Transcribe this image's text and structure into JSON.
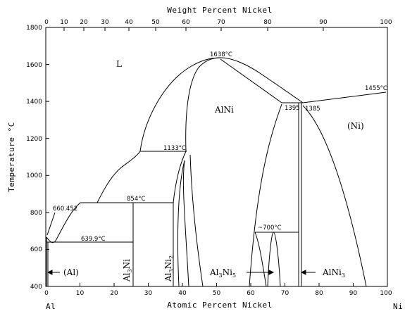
{
  "top_axis": {
    "title": "Weight Percent Nickel",
    "ticks": [
      "0",
      "10",
      "20",
      "30",
      "40",
      "50",
      "60",
      "70",
      "80",
      "90",
      "100"
    ]
  },
  "bottom_axis": {
    "title": "Atomic Percent Nickel",
    "ticks": [
      "0",
      "10",
      "20",
      "30",
      "40",
      "50",
      "60",
      "70",
      "80",
      "90",
      "100"
    ],
    "left_element": "Al",
    "right_element": "Ni"
  },
  "left_axis": {
    "title": "Temperature °C",
    "ticks": [
      "400",
      "600",
      "800",
      "1000",
      "1200",
      "1400",
      "1600",
      "1800"
    ]
  },
  "phases": {
    "liquid": "L",
    "alni": "AlNi",
    "ni": "(Ni)",
    "al": "(Al)",
    "al3ni": "Al3Ni",
    "al3ni2": "Al3Ni2",
    "al3ni5": "Al3Ni5",
    "alni3": "AlNi3"
  },
  "temperatures": {
    "t1638": "1638°C",
    "t1455": "1455°C",
    "t1395": "1395",
    "t1385": "1385",
    "t1133": "1133°C",
    "t854": "854°C",
    "t660": "660.452",
    "t639": "639.9°C",
    "t700": "~700°C"
  },
  "chart_data": {
    "type": "phase-diagram",
    "system": "Al-Ni",
    "x_axis": {
      "label": "Atomic Percent Nickel",
      "range": [
        0,
        100
      ]
    },
    "x2_axis": {
      "label": "Weight Percent Nickel",
      "ticks": [
        0,
        10,
        20,
        30,
        40,
        50,
        60,
        70,
        80,
        90,
        100
      ]
    },
    "y_axis": {
      "label": "Temperature °C",
      "range": [
        400,
        1800
      ]
    },
    "invariants": [
      {
        "label": "1638°C",
        "at_pct": 50,
        "temp": 1638
      },
      {
        "label": "1455°C",
        "at_pct": 100,
        "temp": 1455
      },
      {
        "label": "1395",
        "at_pct": 73.5,
        "temp": 1395
      },
      {
        "label": "1385",
        "at_pct": 74.5,
        "temp": 1385
      },
      {
        "label": "1133°C",
        "range_at_pct": [
          27.5,
          40.8
        ],
        "temp": 1133
      },
      {
        "label": "854°C",
        "range_at_pct": [
          15,
          37.5
        ],
        "temp": 854
      },
      {
        "label": "660.452",
        "at_pct": 0,
        "temp": 660.452
      },
      {
        "label": "639.9°C",
        "range_at_pct": [
          2.7,
          25
        ],
        "temp": 639.9
      },
      {
        "label": "~700°C",
        "range_at_pct": [
          60,
          66
        ],
        "temp": 700
      }
    ]
  }
}
